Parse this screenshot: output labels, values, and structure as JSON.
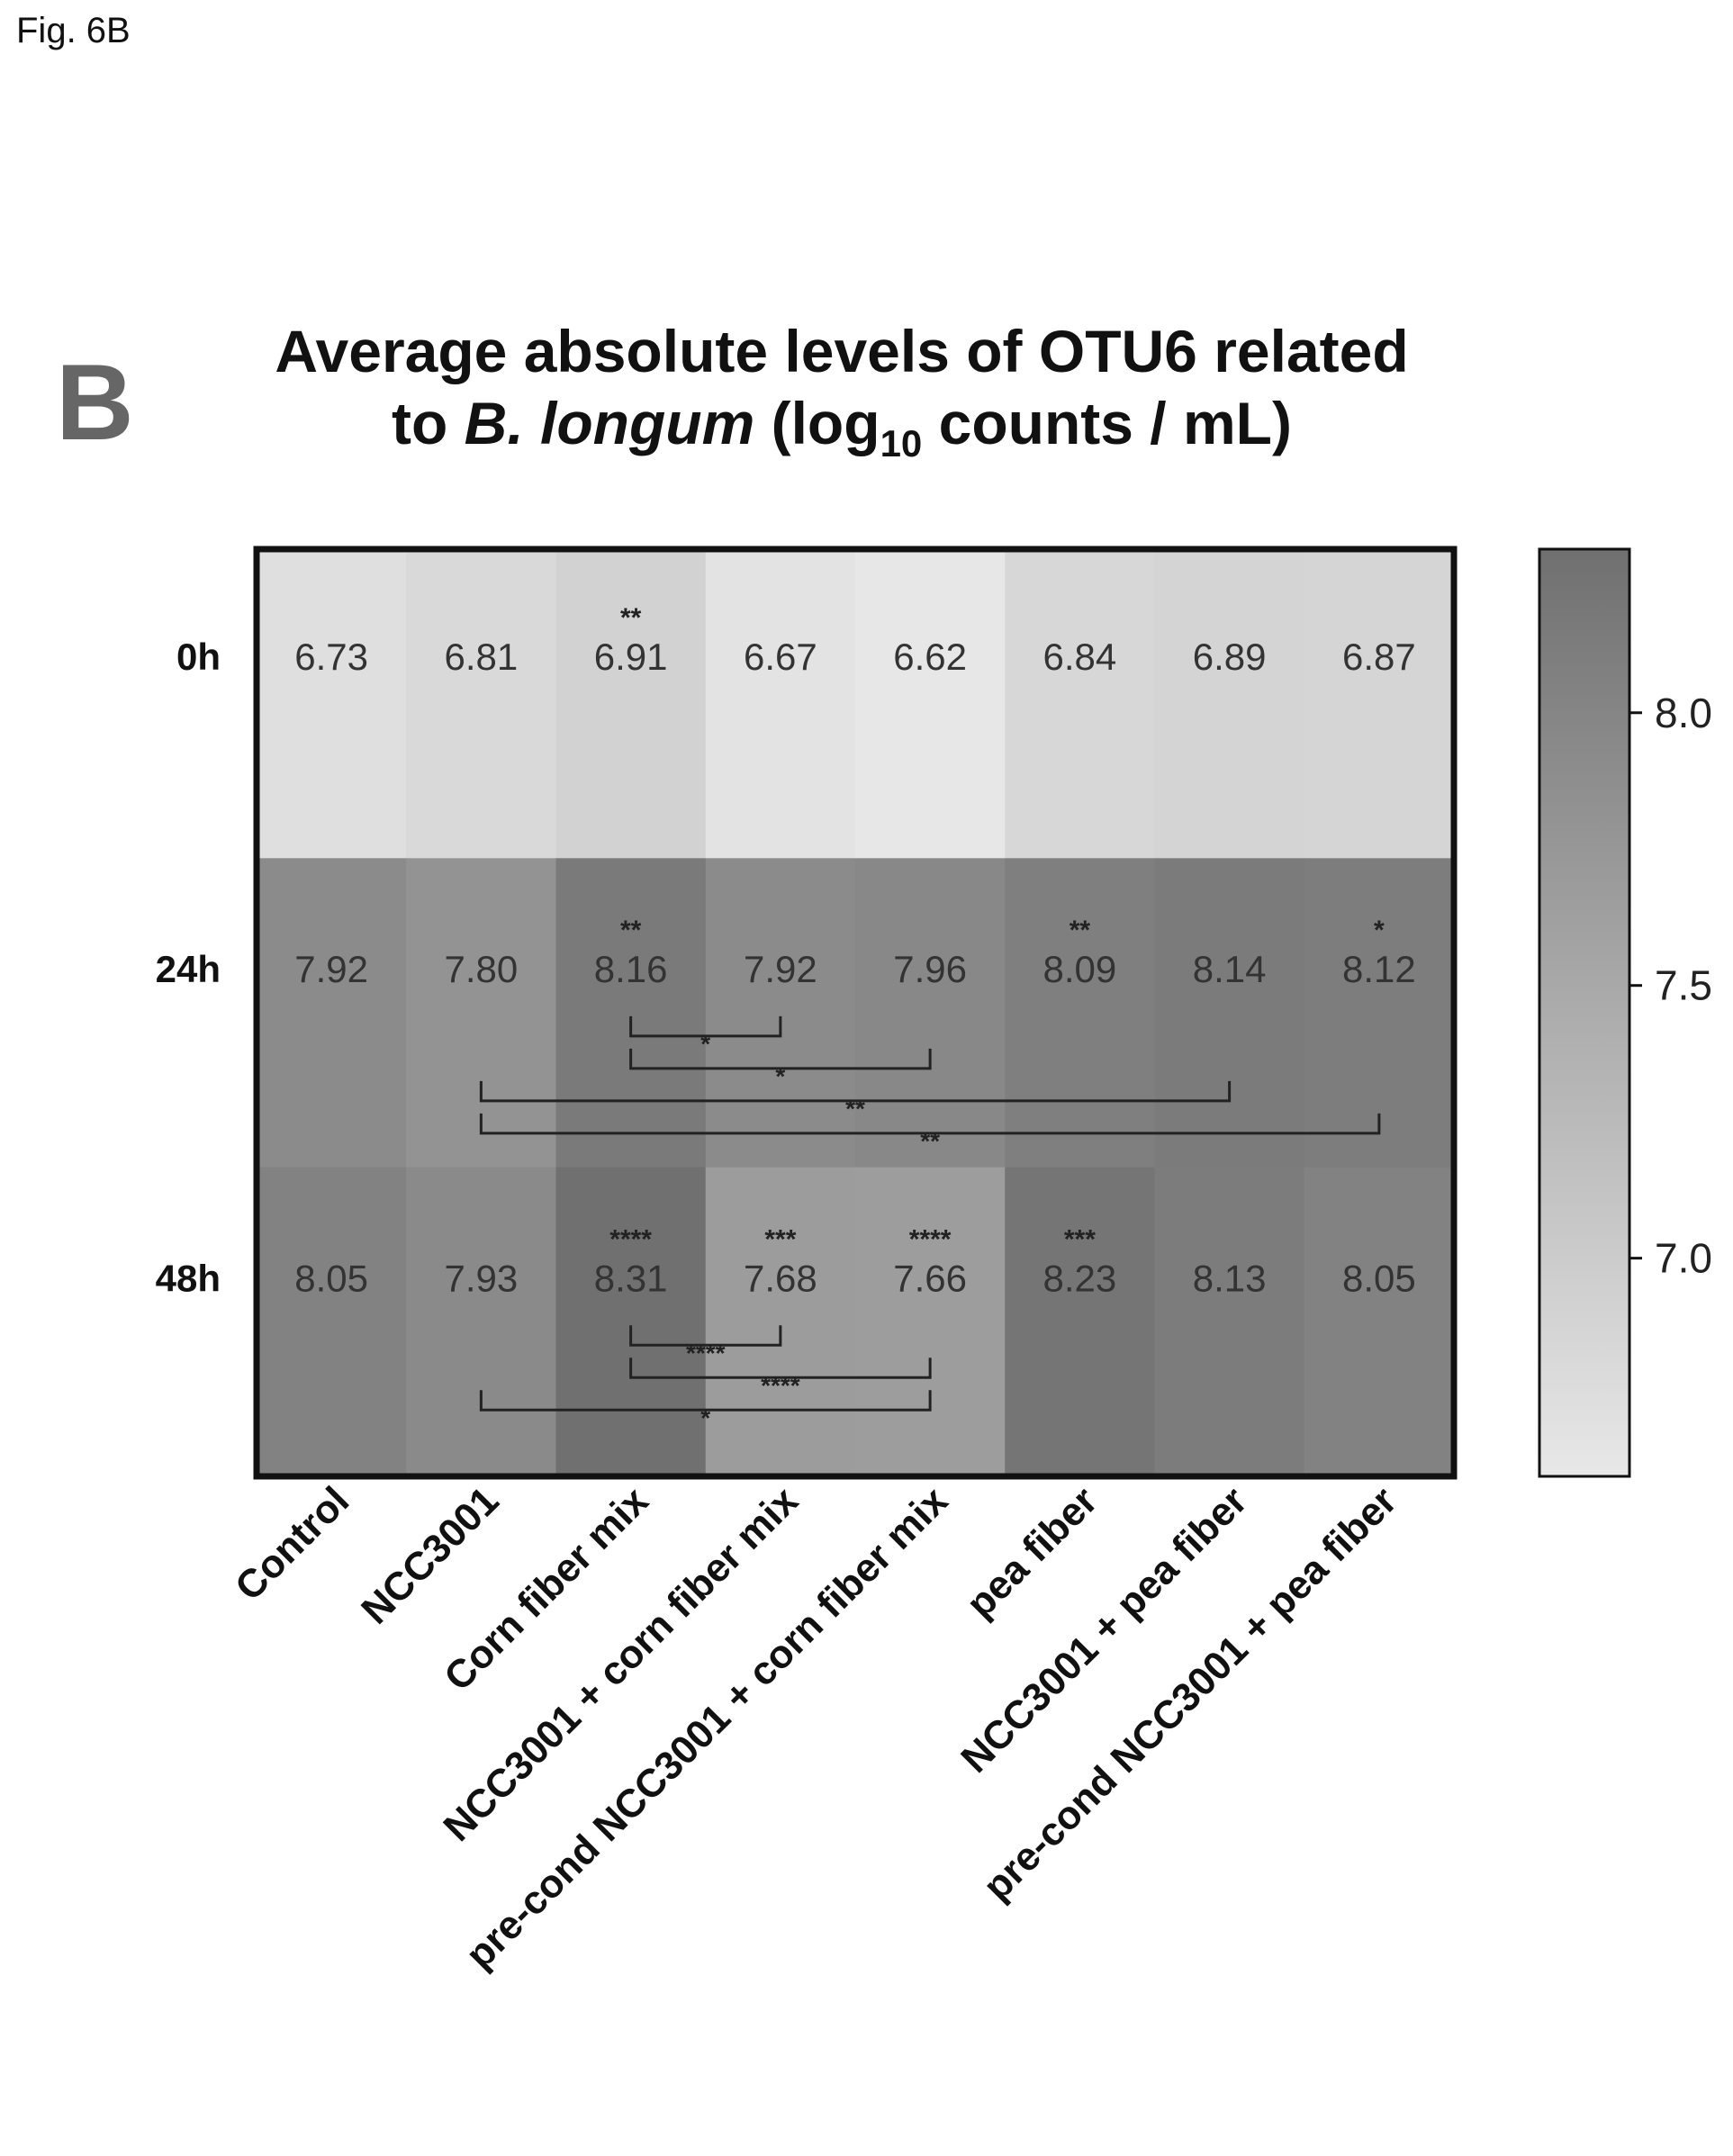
{
  "figure_label": "Fig. 6B",
  "panel_letter": "B",
  "title": {
    "line1": "Average absolute levels of OTU6 related",
    "line2_prefix": "to ",
    "line2_italic": "B. longum",
    "line2_mid": " (log",
    "line2_sub": "10",
    "line2_suffix": " counts / mL)"
  },
  "colors": {
    "low": "#e8e8e8",
    "high": "#707070",
    "frame": "#111111",
    "text": "#333333"
  },
  "chart_data": {
    "type": "heatmap",
    "title": "Average absolute levels of OTU6 related to B. longum (log10 counts / mL)",
    "rows": [
      "0h",
      "24h",
      "48h"
    ],
    "columns": [
      "Control",
      "NCC3001",
      "Corn fiber mix",
      "NCC3001 + corn fiber mix",
      "pre-cond NCC3001 + corn fiber mix",
      "pea fiber",
      "NCC3001 + pea fiber",
      "pre-cond NCC3001 + pea fiber"
    ],
    "values": [
      [
        6.73,
        6.81,
        6.91,
        6.67,
        6.62,
        6.84,
        6.89,
        6.87
      ],
      [
        7.92,
        7.8,
        8.16,
        7.92,
        7.96,
        8.09,
        8.14,
        8.12
      ],
      [
        8.05,
        7.93,
        8.31,
        7.68,
        7.66,
        8.23,
        8.13,
        8.05
      ]
    ],
    "value_labels": [
      [
        "6.73",
        "6.81",
        "6.91",
        "6.67",
        "6.62",
        "6.84",
        "6.89",
        "6.87"
      ],
      [
        "7.92",
        "7.80",
        "8.16",
        "7.92",
        "7.96",
        "8.09",
        "8.14",
        "8.12"
      ],
      [
        "8.05",
        "7.93",
        "8.31",
        "7.68",
        "7.66",
        "8.23",
        "8.13",
        "8.05"
      ]
    ],
    "significance": [
      [
        "",
        "",
        "**",
        "",
        "",
        "",
        "",
        ""
      ],
      [
        "",
        "",
        "**",
        "",
        "",
        "**",
        "",
        "*"
      ],
      [
        "",
        "",
        "****",
        "***",
        "****",
        "***",
        "",
        ""
      ]
    ],
    "comparisons": [
      {
        "row": 1,
        "from": 2,
        "to": 3,
        "label": "*"
      },
      {
        "row": 1,
        "from": 2,
        "to": 4,
        "label": "*"
      },
      {
        "row": 1,
        "from": 1,
        "to": 6,
        "label": "**"
      },
      {
        "row": 1,
        "from": 1,
        "to": 7,
        "label": "**"
      },
      {
        "row": 2,
        "from": 2,
        "to": 3,
        "label": "****"
      },
      {
        "row": 2,
        "from": 2,
        "to": 4,
        "label": "****"
      },
      {
        "row": 2,
        "from": 1,
        "to": 4,
        "label": "*"
      }
    ],
    "colorbar": {
      "range": [
        6.6,
        8.3
      ],
      "ticks": [
        7.0,
        7.5,
        8.0
      ],
      "tick_labels": [
        "7.0",
        "7.5",
        "8.0"
      ]
    }
  }
}
